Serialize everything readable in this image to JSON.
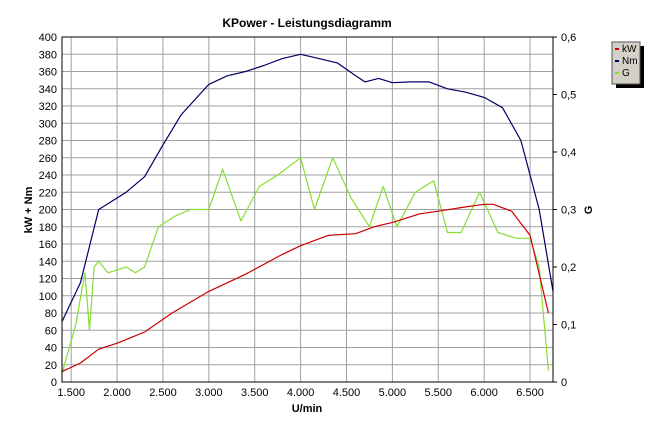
{
  "chart_data": {
    "type": "line",
    "title": "KPower - Leistungsdiagramm",
    "xlabel": "U/min",
    "ylabel": "kW + Nm",
    "y2label": "G",
    "xlim": [
      1400,
      6750
    ],
    "ylim": [
      0,
      400
    ],
    "y2lim": [
      0,
      0.6
    ],
    "grid": true,
    "legend_placement": "right",
    "x_ticks": [
      1500,
      2000,
      2500,
      3000,
      3500,
      4000,
      4500,
      5000,
      5500,
      6000,
      6500
    ],
    "x_tick_labels": [
      "1.500",
      "2.000",
      "2.500",
      "3.000",
      "3.500",
      "4.000",
      "4.500",
      "5.000",
      "5.500",
      "6.000",
      "6.500"
    ],
    "y_ticks": [
      0,
      20,
      40,
      60,
      80,
      100,
      120,
      140,
      160,
      180,
      200,
      220,
      240,
      260,
      280,
      300,
      320,
      340,
      360,
      380,
      400
    ],
    "y_tick_labels": [
      "0",
      "20",
      "40",
      "60",
      "80",
      "100",
      "120",
      "140",
      "160",
      "180",
      "200",
      "220",
      "240",
      "260",
      "280",
      "300",
      "320",
      "340",
      "360",
      "380",
      "400"
    ],
    "y2_ticks": [
      0,
      0.1,
      0.2,
      0.3,
      0.4,
      0.5,
      0.6
    ],
    "y2_tick_labels": [
      "0",
      "0,1",
      "0,2",
      "0,3",
      "0,4",
      "0,5",
      "0,6"
    ],
    "series": [
      {
        "name": "kW",
        "color": "#cc0000",
        "axis": "left",
        "x": [
          1400,
          1600,
          1800,
          2000,
          2300,
          2600,
          3000,
          3400,
          3800,
          4000,
          4300,
          4600,
          4800,
          5000,
          5300,
          5500,
          5800,
          6000,
          6100,
          6300,
          6500,
          6700
        ],
        "y": [
          12,
          22,
          38,
          45,
          58,
          80,
          105,
          125,
          148,
          158,
          170,
          172,
          180,
          185,
          195,
          198,
          203,
          206,
          206,
          198,
          170,
          80
        ]
      },
      {
        "name": "Nm",
        "color": "#000066",
        "axis": "left",
        "x": [
          1400,
          1600,
          1800,
          2100,
          2300,
          2500,
          2700,
          3000,
          3200,
          3400,
          3600,
          3800,
          4000,
          4200,
          4400,
          4600,
          4700,
          4850,
          5000,
          5200,
          5400,
          5600,
          5800,
          6000,
          6200,
          6400,
          6600,
          6750
        ],
        "y": [
          70,
          115,
          200,
          220,
          238,
          275,
          310,
          345,
          355,
          360,
          367,
          375,
          380,
          375,
          370,
          355,
          348,
          352,
          347,
          348,
          348,
          340,
          336,
          330,
          318,
          280,
          200,
          105
        ]
      },
      {
        "name": "G",
        "color": "#88dd33",
        "axis": "right",
        "x": [
          1400,
          1550,
          1650,
          1700,
          1750,
          1800,
          1900,
          2000,
          2100,
          2200,
          2300,
          2450,
          2650,
          2800,
          3000,
          3150,
          3350,
          3550,
          3750,
          4000,
          4150,
          4350,
          4550,
          4750,
          4900,
          5050,
          5250,
          5450,
          5600,
          5750,
          5950,
          6150,
          6350,
          6500,
          6600,
          6700
        ],
        "y": [
          0.015,
          0.1,
          0.19,
          0.09,
          0.2,
          0.21,
          0.19,
          0.195,
          0.2,
          0.19,
          0.2,
          0.27,
          0.29,
          0.3,
          0.3,
          0.37,
          0.28,
          0.34,
          0.36,
          0.39,
          0.3,
          0.39,
          0.32,
          0.27,
          0.34,
          0.27,
          0.33,
          0.35,
          0.26,
          0.26,
          0.33,
          0.26,
          0.25,
          0.25,
          0.2,
          0.02
        ]
      }
    ],
    "legend": [
      "kW",
      "Nm",
      "G"
    ]
  }
}
